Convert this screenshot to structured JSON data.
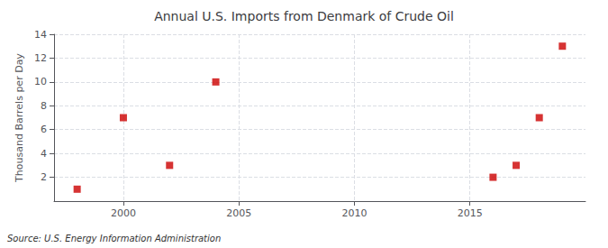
{
  "chart_data": {
    "type": "scatter",
    "title": "Annual U.S. Imports from Denmark of Crude Oil",
    "ylabel": "Thousand Barrels per Day",
    "annotation": "Source: U.S. Energy Information Administration",
    "x": [
      1998,
      2000,
      2002,
      2004,
      2016,
      2017,
      2018,
      2019
    ],
    "values": [
      1,
      7,
      3,
      10,
      2,
      3,
      7,
      13
    ],
    "color": "#cc0000",
    "marker": "square",
    "xlim": [
      1997,
      2020
    ],
    "xticks": [
      2000,
      2005,
      2010,
      2015
    ],
    "ylim": [
      0,
      14
    ],
    "yticks": [
      2,
      4,
      6,
      8,
      10,
      12,
      14
    ],
    "grid": true
  }
}
